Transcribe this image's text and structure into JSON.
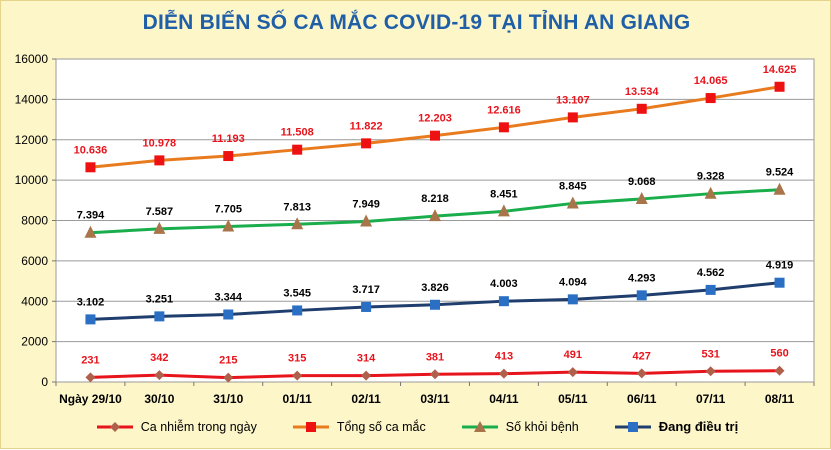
{
  "chart_data": {
    "type": "line",
    "title": "DIỄN BIẾN SỐ CA MẮC COVID-19 TẠI TỈNH AN GIANG",
    "categories": [
      "Ngày 29/10",
      "30/10",
      "31/10",
      "01/11",
      "02/11",
      "03/11",
      "04/11",
      "05/11",
      "06/11",
      "07/11",
      "08/11"
    ],
    "ylim": [
      0,
      16000
    ],
    "yticks": [
      "0",
      "2000",
      "4000",
      "6000",
      "8000",
      "10000",
      "12000",
      "14000",
      "16000"
    ],
    "grid": true,
    "legend_position": "bottom",
    "series": [
      {
        "name": "Ca nhiễm trong ngày",
        "color": "#e8141c",
        "marker": "diamond",
        "values": [
          231,
          342,
          215,
          315,
          314,
          381,
          413,
          491,
          427,
          531,
          560
        ],
        "labels": [
          "231",
          "342",
          "215",
          "315",
          "314",
          "381",
          "413",
          "491",
          "427",
          "531",
          "560"
        ],
        "label_color": "#e8141c"
      },
      {
        "name": "Tổng số ca mắc",
        "color": "#e97b1f",
        "marker_color": "#ee1111",
        "marker": "square",
        "values": [
          10636,
          10978,
          11193,
          11508,
          11822,
          12203,
          12616,
          13107,
          13534,
          14065,
          14625
        ],
        "labels": [
          "10.636",
          "10.978",
          "11.193",
          "11.508",
          "11.822",
          "12.203",
          "12.616",
          "13.107",
          "13.534",
          "14.065",
          "14.625"
        ],
        "label_color": "#e8141c"
      },
      {
        "name": "Số khỏi bệnh",
        "color": "#19ad4c",
        "marker_color": "#a8754a",
        "marker": "triangle",
        "values": [
          7394,
          7587,
          7705,
          7813,
          7949,
          8218,
          8451,
          8845,
          9068,
          9328,
          9524
        ],
        "labels": [
          "7.394",
          "7.587",
          "7.705",
          "7.813",
          "7.949",
          "8.218",
          "8.451",
          "8.845",
          "9.068",
          "9.328",
          "9.524"
        ],
        "label_color": "#000000"
      },
      {
        "name": "Đang điều trị",
        "color": "#1f3e6e",
        "marker_color": "#2a6fc4",
        "marker": "square",
        "values": [
          3102,
          3251,
          3344,
          3545,
          3717,
          3826,
          4003,
          4094,
          4293,
          4562,
          4919
        ],
        "labels": [
          "3.102",
          "3.251",
          "3.344",
          "3.545",
          "3.717",
          "3.826",
          "4.003",
          "4.094",
          "4.293",
          "4.562",
          "4.919"
        ],
        "label_color": "#000000"
      }
    ]
  }
}
